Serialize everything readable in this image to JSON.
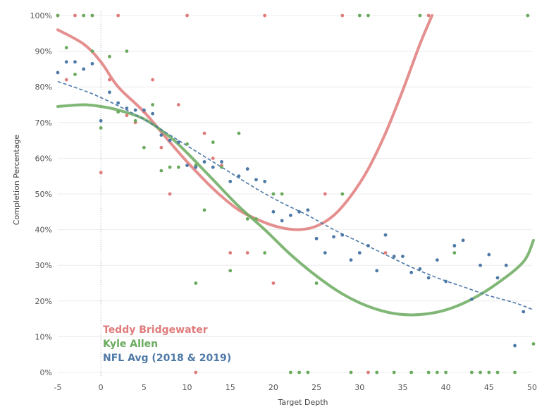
{
  "chart_data": {
    "type": "scatter",
    "title": "",
    "xlabel": "Target Depth",
    "ylabel": "Completion Percentage",
    "xlim": [
      -5,
      50
    ],
    "ylim": [
      0,
      100
    ],
    "x_ticks": [
      -5,
      0,
      5,
      10,
      15,
      20,
      25,
      30,
      35,
      40,
      45,
      50
    ],
    "y_ticks": [
      0,
      10,
      20,
      30,
      40,
      50,
      60,
      70,
      80,
      90,
      100
    ],
    "y_tick_labels": [
      "0%",
      "10%",
      "20%",
      "30%",
      "40%",
      "50%",
      "60%",
      "70%",
      "80%",
      "90%",
      "100%"
    ],
    "grid": true,
    "legend_position": "bottom-left",
    "series": [
      {
        "name": "Teddy Bridgewater",
        "color": "#e07b7b",
        "trend": "polynomial",
        "trend_points": [
          [
            -5,
            96
          ],
          [
            -2,
            92
          ],
          [
            0,
            87
          ],
          [
            2,
            80
          ],
          [
            5,
            73
          ],
          [
            8,
            64.5
          ],
          [
            10,
            59
          ],
          [
            13,
            51.5
          ],
          [
            16,
            45.5
          ],
          [
            19,
            42
          ],
          [
            21,
            40.5
          ],
          [
            23,
            40
          ],
          [
            25,
            41
          ],
          [
            27,
            44
          ],
          [
            29,
            49.5
          ],
          [
            31,
            57
          ],
          [
            33,
            67
          ],
          [
            35,
            79
          ],
          [
            37,
            92
          ],
          [
            38.4,
            100
          ]
        ],
        "points": [
          [
            -5,
            100
          ],
          [
            -3,
            100
          ],
          [
            -1,
            100
          ],
          [
            2,
            100
          ],
          [
            10,
            100
          ],
          [
            19,
            100
          ],
          [
            28,
            100
          ],
          [
            38,
            100
          ],
          [
            -4,
            82
          ],
          [
            1,
            82
          ],
          [
            6,
            82
          ],
          [
            9,
            75
          ],
          [
            3,
            72
          ],
          [
            4,
            70
          ],
          [
            5,
            73
          ],
          [
            7,
            63
          ],
          [
            12,
            67
          ],
          [
            13,
            60
          ],
          [
            14,
            58
          ],
          [
            0,
            56
          ],
          [
            8,
            50
          ],
          [
            15,
            33.5
          ],
          [
            17,
            33.5
          ],
          [
            20,
            25
          ],
          [
            26,
            50
          ],
          [
            33,
            33.5
          ],
          [
            11,
            0
          ],
          [
            31,
            0
          ]
        ]
      },
      {
        "name": "Kyle Allen",
        "color": "#6aaa5e",
        "trend": "polynomial",
        "trend_points": [
          [
            -5,
            74.5
          ],
          [
            -2,
            75
          ],
          [
            0,
            74.5
          ],
          [
            2,
            73.5
          ],
          [
            5,
            71
          ],
          [
            8,
            66
          ],
          [
            10,
            61.5
          ],
          [
            13,
            54
          ],
          [
            16,
            46.5
          ],
          [
            19,
            40
          ],
          [
            22,
            33
          ],
          [
            25,
            27
          ],
          [
            28,
            22
          ],
          [
            31,
            18.5
          ],
          [
            34,
            16.5
          ],
          [
            37,
            16.2
          ],
          [
            40,
            17.5
          ],
          [
            43,
            20.5
          ],
          [
            46,
            25
          ],
          [
            49,
            31
          ],
          [
            51,
            37
          ]
        ],
        "points": [
          [
            -5,
            100
          ],
          [
            -2,
            100
          ],
          [
            -1,
            100
          ],
          [
            30,
            100
          ],
          [
            31,
            100
          ],
          [
            37,
            100
          ],
          [
            49.5,
            100
          ],
          [
            -4,
            91
          ],
          [
            -1,
            90
          ],
          [
            1,
            88.5
          ],
          [
            3,
            90
          ],
          [
            -3,
            83.5
          ],
          [
            0,
            68.5
          ],
          [
            2,
            73
          ],
          [
            4,
            70.5
          ],
          [
            6,
            75
          ],
          [
            5,
            63
          ],
          [
            7,
            56.5
          ],
          [
            8,
            57.5
          ],
          [
            9,
            57.5
          ],
          [
            10,
            64
          ],
          [
            11,
            58
          ],
          [
            12,
            45.5
          ],
          [
            13,
            64.5
          ],
          [
            14,
            57.5
          ],
          [
            16,
            67
          ],
          [
            17,
            43
          ],
          [
            18,
            43
          ],
          [
            19,
            33.5
          ],
          [
            20,
            50
          ],
          [
            21,
            50
          ],
          [
            15,
            28.5
          ],
          [
            11,
            25
          ],
          [
            25,
            25
          ],
          [
            28,
            50
          ],
          [
            41,
            33.5
          ],
          [
            22,
            0
          ],
          [
            23,
            0
          ],
          [
            24,
            0
          ],
          [
            29,
            0
          ],
          [
            32,
            0
          ],
          [
            34,
            0
          ],
          [
            36,
            0
          ],
          [
            38,
            0
          ],
          [
            39,
            0
          ],
          [
            40,
            0
          ],
          [
            43,
            0
          ],
          [
            44,
            0
          ],
          [
            45,
            0
          ],
          [
            46,
            0
          ],
          [
            48,
            0
          ],
          [
            51,
            8
          ]
        ]
      },
      {
        "name": "NFL Avg (2018 & 2019)",
        "color": "#4e79a7",
        "trend": "polynomial",
        "trend_points": [
          [
            -5,
            81.5
          ],
          [
            -2,
            79
          ],
          [
            0,
            77
          ],
          [
            3,
            73.5
          ],
          [
            6,
            69.5
          ],
          [
            9,
            65
          ],
          [
            12,
            60.5
          ],
          [
            15,
            56
          ],
          [
            18,
            51.5
          ],
          [
            21,
            47.5
          ],
          [
            24,
            44
          ],
          [
            27,
            40
          ],
          [
            30,
            36.5
          ],
          [
            33,
            33
          ],
          [
            36,
            29.5
          ],
          [
            39,
            26.5
          ],
          [
            42,
            24
          ],
          [
            45,
            21.5
          ],
          [
            48,
            19.5
          ],
          [
            51,
            17.5
          ]
        ],
        "points": [
          [
            -5,
            84
          ],
          [
            -4,
            87
          ],
          [
            -3,
            87
          ],
          [
            -2,
            85
          ],
          [
            -1,
            86.5
          ],
          [
            0,
            70.5
          ],
          [
            1,
            78.5
          ],
          [
            2,
            75.5
          ],
          [
            3,
            74
          ],
          [
            4,
            73.5
          ],
          [
            5,
            73.5
          ],
          [
            6,
            72.5
          ],
          [
            7,
            66.5
          ],
          [
            8,
            65
          ],
          [
            9,
            64.5
          ],
          [
            10,
            58
          ],
          [
            11,
            57.5
          ],
          [
            12,
            59
          ],
          [
            13,
            57.5
          ],
          [
            14,
            59
          ],
          [
            15,
            53.5
          ],
          [
            16,
            55
          ],
          [
            17,
            57
          ],
          [
            18,
            54
          ],
          [
            19,
            53.5
          ],
          [
            20,
            45
          ],
          [
            21,
            42.5
          ],
          [
            22,
            44
          ],
          [
            23,
            45
          ],
          [
            24,
            45.5
          ],
          [
            25,
            37.5
          ],
          [
            26,
            33.5
          ],
          [
            27,
            38
          ],
          [
            28,
            38.5
          ],
          [
            29,
            31.5
          ],
          [
            30,
            33.5
          ],
          [
            31,
            35.5
          ],
          [
            32,
            28.5
          ],
          [
            33,
            38.5
          ],
          [
            34,
            32.5
          ],
          [
            35,
            32.5
          ],
          [
            36,
            28
          ],
          [
            37,
            29
          ],
          [
            38,
            26.5
          ],
          [
            39,
            31.5
          ],
          [
            40,
            25.5
          ],
          [
            41,
            35.5
          ],
          [
            42,
            37
          ],
          [
            43,
            20.5
          ],
          [
            44,
            30
          ],
          [
            45,
            33
          ],
          [
            46,
            26.5
          ],
          [
            47,
            30
          ],
          [
            48,
            7.5
          ],
          [
            49,
            17
          ]
        ]
      }
    ]
  }
}
